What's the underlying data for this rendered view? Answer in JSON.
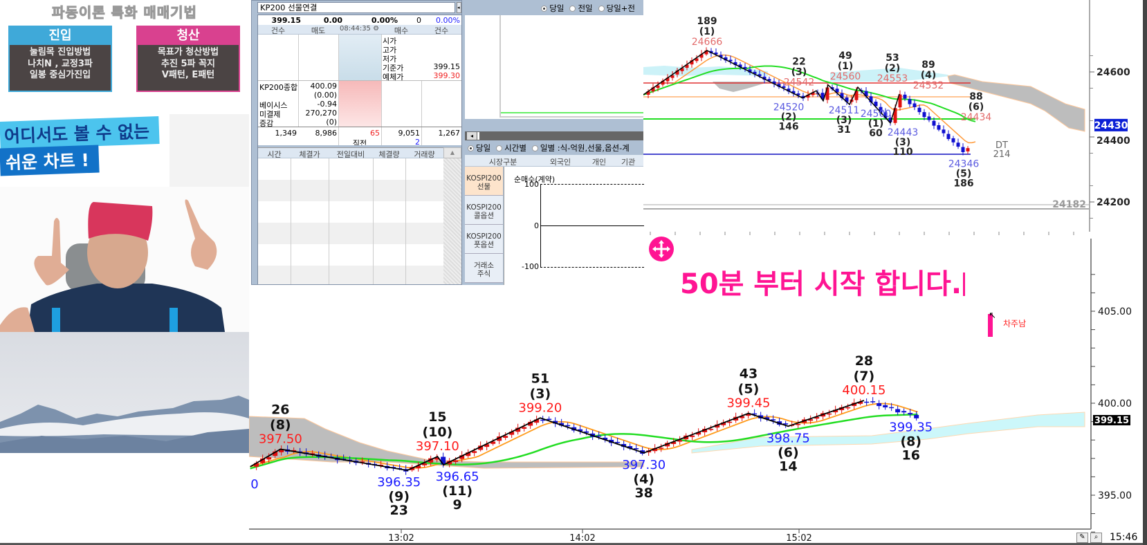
{
  "promo": {
    "title": "파동이론 특화 매매기법",
    "entry": {
      "header": "진입",
      "lines": [
        "눌림목 진입방법",
        "나치N , 교정3파",
        "일봉 중심가진입"
      ],
      "color": "#3fa9d9"
    },
    "exit": {
      "header": "청산",
      "lines": [
        "목표가 청산방법",
        "추진 5파 꼭지",
        "V패턴, E패턴"
      ],
      "color": "#d9418f"
    },
    "banner_line1": "어디서도 볼 수 없는",
    "banner_line2": "쉬운 차트 !"
  },
  "quote_panel": {
    "symbol": "KP200 선물연결",
    "summary": {
      "price": "399.15",
      "change": "0.00",
      "change_pct": "0.00%",
      "volume": "0",
      "pct2": "0.00%"
    },
    "header": {
      "count_sell": "건수",
      "sell": "매도",
      "time": "08:44:35",
      "buy": "매수",
      "count_buy": "건수"
    },
    "info": [
      {
        "label": "시가",
        "value": ""
      },
      {
        "label": "고가",
        "value": ""
      },
      {
        "label": "저가",
        "value": ""
      },
      {
        "label": "기준가",
        "value": "399.15"
      },
      {
        "label": "예체가",
        "value": "399.30"
      }
    ],
    "index_info": [
      {
        "label": "KP200종합",
        "value": "400.09"
      },
      {
        "label": "",
        "value": "(0.00)"
      },
      {
        "label": "베이시스",
        "value": "-0.94"
      },
      {
        "label": "미결제",
        "value": "270,270"
      },
      {
        "label": "증감",
        "value": "(0)"
      }
    ],
    "totals": {
      "sell_count": "1,349",
      "sell_qty": "8,986",
      "diff": "65",
      "diff_label": "직전",
      "buy_qty": "9,051",
      "buy_prev": "2",
      "buy_count": "1,267"
    },
    "trade_table": {
      "columns": [
        "시간",
        "체결가",
        "전일대비",
        "체결량",
        "거래량"
      ],
      "rows": []
    }
  },
  "investor_panel": {
    "top_radios": [
      {
        "label": "당일",
        "selected": true
      },
      {
        "label": "전일",
        "selected": false
      },
      {
        "label": "당일+전",
        "selected": false
      }
    ],
    "radios": [
      {
        "label": "당일",
        "selected": true
      },
      {
        "label": "시간별",
        "selected": false
      },
      {
        "label": "일별 :식-억원,선물,옵션-계",
        "selected": false
      }
    ],
    "columns": [
      "시장구분",
      "외국인",
      "개인",
      "기관"
    ],
    "markets": [
      {
        "line1": "KOSPI200",
        "line2": "선물",
        "selected": true
      },
      {
        "line1": "KOSPI200",
        "line2": "콜옵션",
        "selected": false
      },
      {
        "line1": "KOSPI200",
        "line2": "풋옵션",
        "selected": false
      },
      {
        "line1": "거래소",
        "line2": "주식",
        "selected": false
      }
    ],
    "chart_title": "순매수(계약)",
    "y_ticks": [
      "100",
      "0",
      "-100"
    ]
  },
  "top_chart": {
    "y_ticks": [
      "24600",
      "24400",
      "24200"
    ],
    "current_price": "24430",
    "low_marker": "24182",
    "dt_label": "DT",
    "dt_value": "214",
    "pivots": [
      {
        "price": 24666,
        "type": "peak",
        "count": "189",
        "wave": "(1)",
        "text": "24666"
      },
      {
        "price": 24520,
        "type": "trough",
        "count": "146",
        "wave": "(2)",
        "text": "24520"
      },
      {
        "price": 24542,
        "type": "peak",
        "count": "22",
        "wave": "(3)",
        "text": "24542"
      },
      {
        "price": 24511,
        "type": "trough",
        "count": "31",
        "wave": "(3)",
        "text": "24511"
      },
      {
        "price": 24560,
        "type": "peak",
        "count": "49",
        "wave": "(1)",
        "text": "24560"
      },
      {
        "price": 24500,
        "type": "trough",
        "count": "60",
        "wave": "(1)",
        "text": "24500"
      },
      {
        "price": 24553,
        "type": "peak",
        "count": "53",
        "wave": "(2)",
        "text": "24553"
      },
      {
        "price": 24443,
        "type": "trough",
        "count": "110",
        "wave": "(3)",
        "text": "24443"
      },
      {
        "price": 24532,
        "type": "peak",
        "count": "89",
        "wave": "(4)",
        "text": "24532"
      },
      {
        "price": 24346,
        "type": "trough",
        "count": "186",
        "wave": "(5)",
        "text": "24346"
      },
      {
        "price": 24434,
        "type": "peak",
        "count": "88",
        "wave": "(6)",
        "text": "24434"
      }
    ],
    "colors": {
      "peak_text": "#e26a6a",
      "trough_text": "#5a5ae0",
      "up": "#e01010",
      "down": "#1010d0"
    }
  },
  "main_chart": {
    "x_ticks": [
      "13:02",
      "14:02",
      "15:02"
    ],
    "y_ticks": [
      "405.00",
      "400.00",
      "395.00"
    ],
    "current_price": "399.15",
    "clock": "15:46",
    "edge_label": "0",
    "start": {
      "time": "12:12",
      "price": 396.55
    },
    "pivots": [
      {
        "time": "12:22",
        "price": 397.5,
        "type": "peak",
        "count": "26",
        "wave": "(8)",
        "text": "397.50"
      },
      {
        "time": "13:04",
        "price": 396.35,
        "type": "trough",
        "count": "23",
        "wave": "(9)",
        "text": "396.35"
      },
      {
        "time": "13:14",
        "price": 397.1,
        "type": "peak",
        "count": "15",
        "wave": "(10)",
        "text": "397.10"
      },
      {
        "time": "13:16",
        "price": 396.65,
        "type": "trough",
        "count": "9",
        "wave": "(11)",
        "text": "396.65"
      },
      {
        "time": "13:48",
        "price": 399.2,
        "type": "peak",
        "count": "51",
        "wave": "(3)",
        "text": "399.20"
      },
      {
        "time": "14:19",
        "price": 397.3,
        "type": "trough",
        "count": "38",
        "wave": "(4)",
        "text": "397.30"
      },
      {
        "time": "14:48",
        "price": 399.45,
        "type": "peak",
        "count": "43",
        "wave": "(5)",
        "text": "399.45"
      },
      {
        "time": "14:59",
        "price": 398.75,
        "type": "trough",
        "count": "14",
        "wave": "(6)",
        "text": "398.75"
      },
      {
        "time": "15:20",
        "price": 400.15,
        "type": "peak",
        "count": "28",
        "wave": "(7)",
        "text": "400.15"
      },
      {
        "time": "15:33",
        "price": 399.35,
        "type": "trough",
        "count": "16",
        "wave": "(8)",
        "text": "399.35"
      }
    ],
    "colors": {
      "peak_text": "#ff1a1a",
      "trough_text": "#1a1aff",
      "fast_ma": "#ff9a1a",
      "slow_ma": "#22dd22",
      "cloud_down": "#bdbdbd",
      "cloud_up": "#ccf7fa"
    }
  },
  "overlay": {
    "notice": "50분 부터 시작 합니다.",
    "marker_label": "차주남",
    "accent": "#ff1493"
  }
}
